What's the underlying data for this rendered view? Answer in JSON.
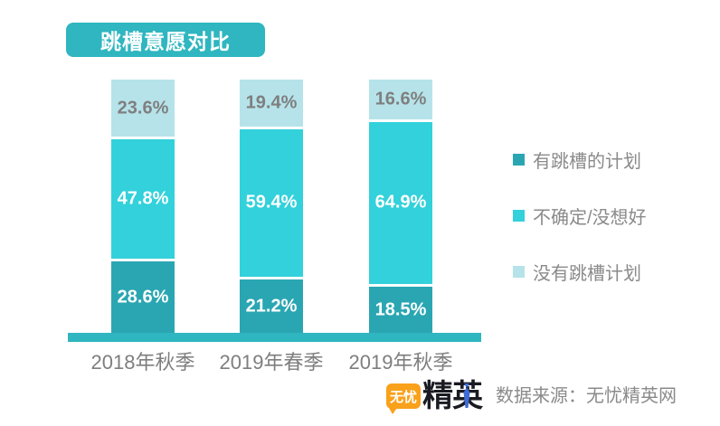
{
  "title": {
    "badge_label": "跳槽意愿对比"
  },
  "chart_data": {
    "type": "bar",
    "stacked": true,
    "orientation": "vertical",
    "categories": [
      "2018年秋季",
      "2019年春季",
      "2019年秋季"
    ],
    "series": [
      {
        "name": "有跳槽的计划",
        "color": "#2AA6B2",
        "label_color": "#ffffff",
        "values": [
          28.6,
          21.2,
          18.5
        ]
      },
      {
        "name": "不确定/没想好",
        "color": "#32D1DB",
        "label_color": "#ffffff",
        "values": [
          47.8,
          59.4,
          64.9
        ]
      },
      {
        "name": "没有跳槽计划",
        "color": "#B6E3EA",
        "label_color": "#7f7f7f",
        "values": [
          23.6,
          19.4,
          16.6
        ]
      }
    ],
    "value_suffix": "%",
    "ylim": [
      0,
      100
    ],
    "grid": false,
    "legend_position": "right",
    "value_labels": "inside-center"
  },
  "footer": {
    "logo": {
      "bubble_text": "无忧",
      "brand_text": "精英"
    },
    "source_label": "数据来源：无忧精英网"
  },
  "colors": {
    "accent_teal": "#2FB6C0",
    "axis_label_gray": "#7e7e7e",
    "legend_text_gray": "#8a8a8a",
    "logo_orange": "#F9A11B",
    "logo_dark": "#1A1A22",
    "logo_tie_blue": "#3E6BD5"
  }
}
